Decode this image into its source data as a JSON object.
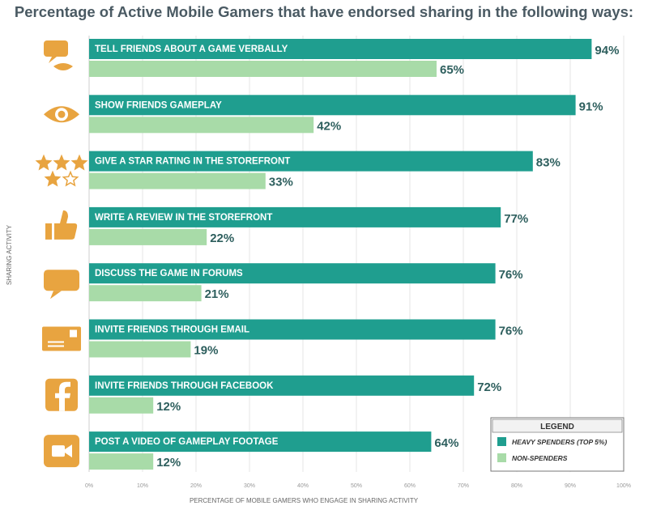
{
  "chart_data": {
    "type": "bar",
    "orientation": "horizontal",
    "title": "Percentage of Active Mobile Gamers that have endorsed sharing in the following ways:",
    "xlabel": "PERCENTAGE OF MOBILE GAMERS WHO ENGAGE IN SHARING ACTIVITY",
    "ylabel": "SHARING ACTIVITY",
    "xlim": [
      0,
      100
    ],
    "x_ticks": [
      "0%",
      "10%",
      "20%",
      "30%",
      "40%",
      "50%",
      "60%",
      "70%",
      "80%",
      "90%",
      "100%"
    ],
    "grid": true,
    "legend_position": "bottom-right",
    "legend_title": "LEGEND",
    "categories": [
      "TELL FRIENDS ABOUT A GAME VERBALLY",
      "SHOW FRIENDS GAMEPLAY",
      "GIVE A STAR RATING IN THE STOREFRONT",
      "WRITE A REVIEW IN THE STOREFRONT",
      "DISCUSS THE GAME IN FORUMS",
      "INVITE FRIENDS THROUGH EMAIL",
      "INVITE FRIENDS THROUGH FACEBOOK",
      "POST A VIDEO OF GAMEPLAY FOOTAGE"
    ],
    "category_icons": [
      "speech-lips-icon",
      "eye-icon",
      "star-rating-icon",
      "thumbs-up-icon",
      "chat-bubble-icon",
      "envelope-icon",
      "facebook-icon",
      "video-camera-icon"
    ],
    "series": [
      {
        "name": "HEAVY SPENDERS (TOP 5%)",
        "color": "#1f9e8f",
        "values": [
          94,
          91,
          83,
          77,
          76,
          76,
          72,
          64
        ],
        "labels": [
          "94%",
          "91%",
          "83%",
          "77%",
          "76%",
          "76%",
          "72%",
          "64%"
        ]
      },
      {
        "name": "NON-SPENDERS",
        "color": "#a8dba8",
        "values": [
          65,
          42,
          33,
          22,
          21,
          19,
          12,
          12
        ],
        "labels": [
          "65%",
          "42%",
          "33%",
          "22%",
          "21%",
          "19%",
          "12%",
          "12%"
        ]
      }
    ],
    "icon_color": "#e8a440"
  }
}
